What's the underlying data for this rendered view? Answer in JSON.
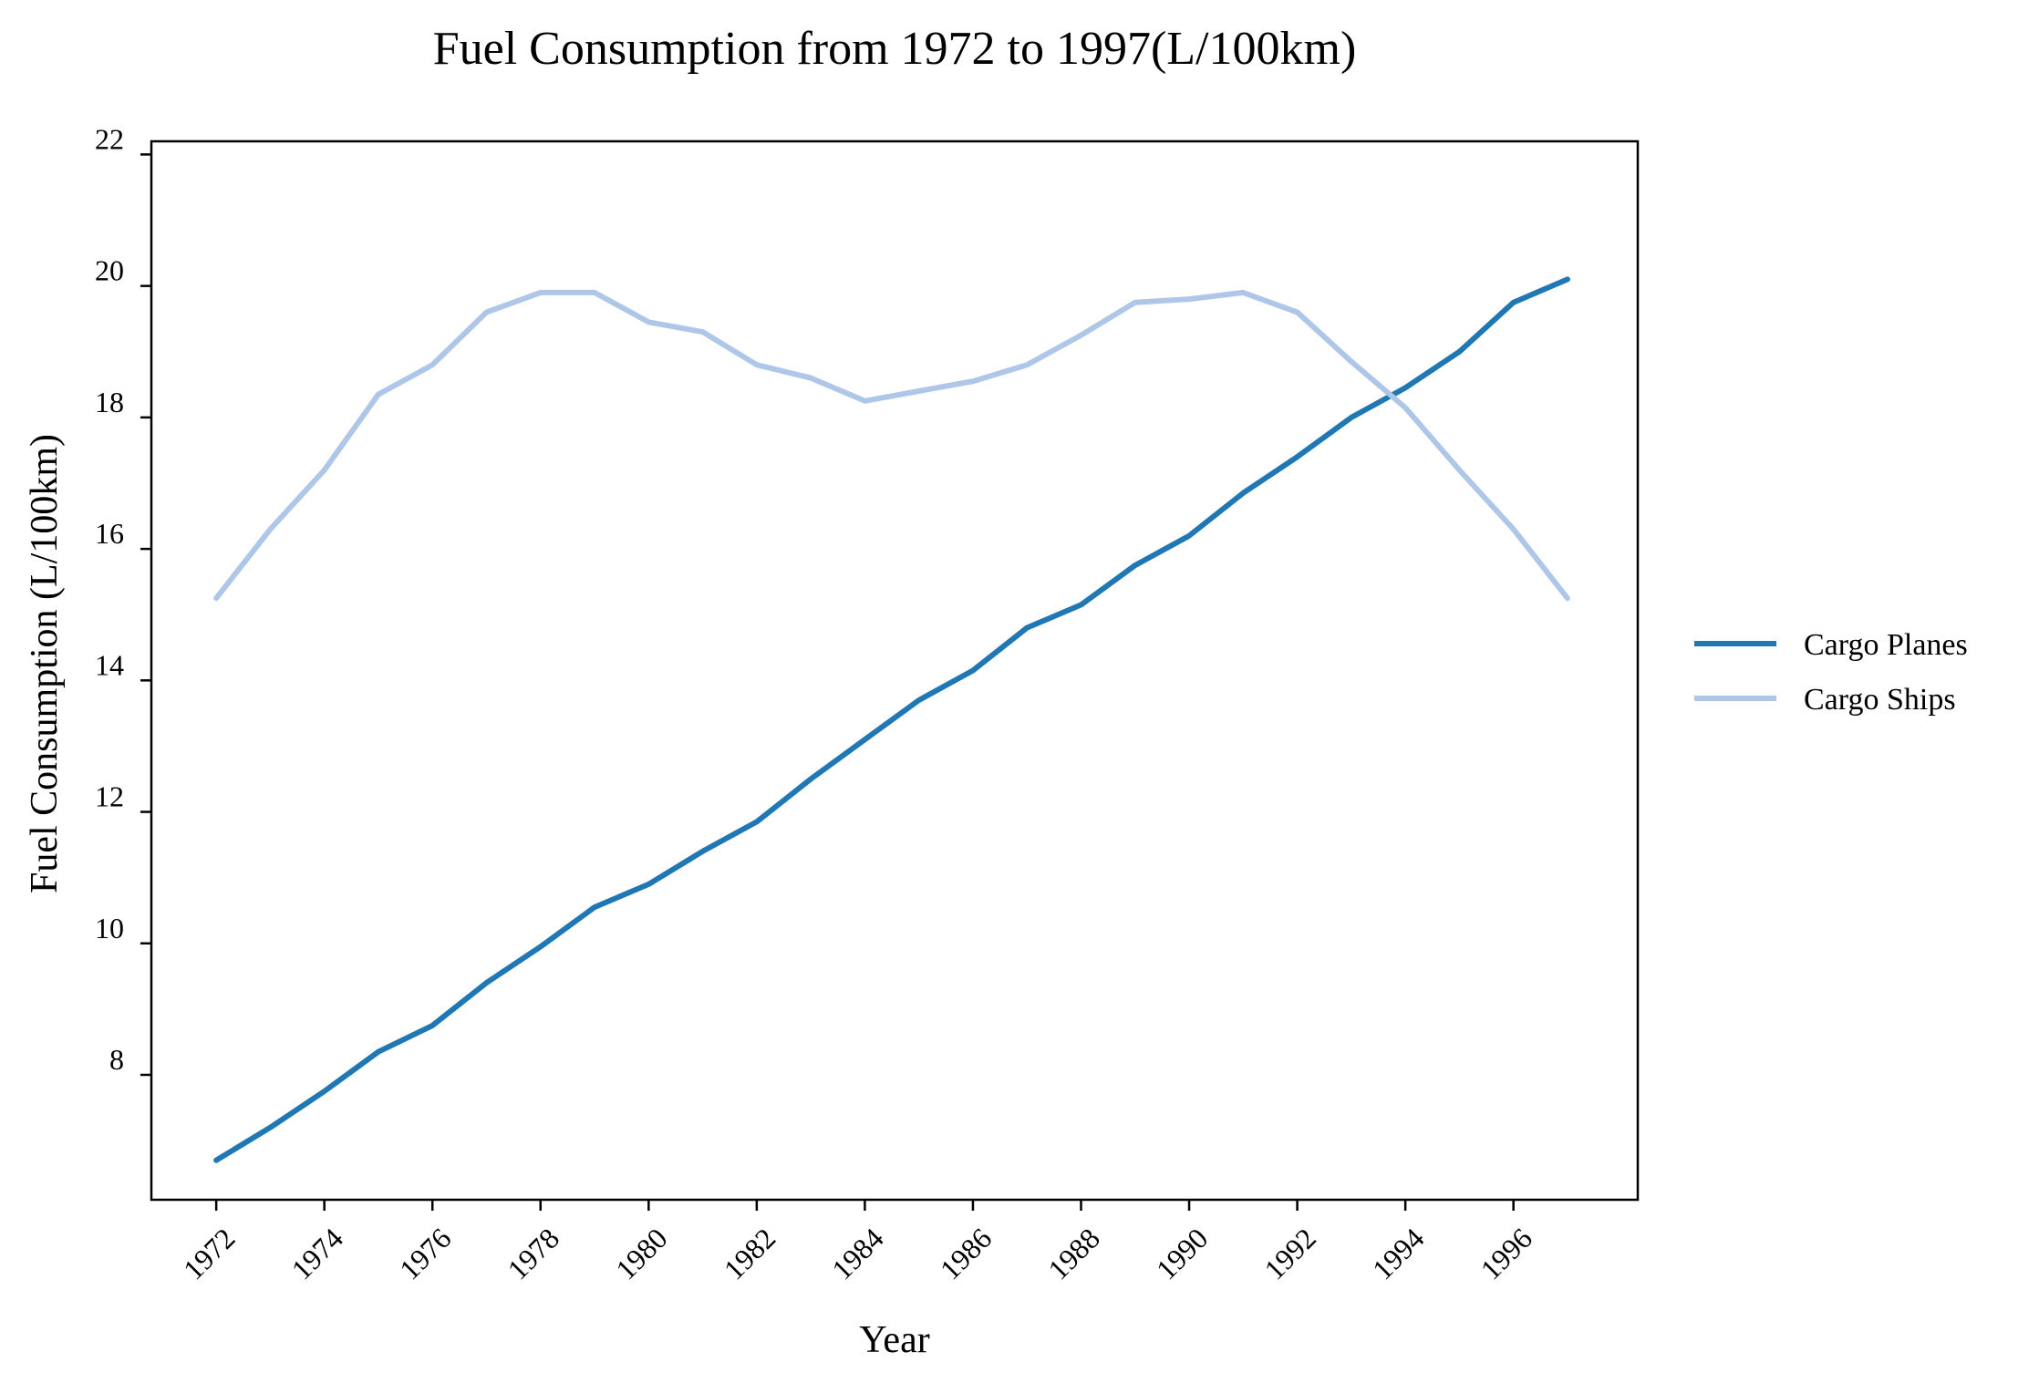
{
  "colors": {
    "background": "#ffffff",
    "axis": "#000000"
  },
  "chart_data": {
    "type": "line",
    "title": "Fuel Consumption from 1972 to 1997(L/100km)",
    "xlabel": "Year",
    "ylabel": "Fuel Consumption (L/100km)",
    "x": [
      1972,
      1973,
      1974,
      1975,
      1976,
      1977,
      1978,
      1979,
      1980,
      1981,
      1982,
      1983,
      1984,
      1985,
      1986,
      1987,
      1988,
      1989,
      1990,
      1991,
      1992,
      1993,
      1994,
      1995,
      1996,
      1997
    ],
    "xlim": [
      1970.8,
      1998.3
    ],
    "ylim": [
      6.1,
      22.2
    ],
    "xticks": [
      1972,
      1974,
      1976,
      1978,
      1980,
      1982,
      1984,
      1986,
      1988,
      1990,
      1992,
      1994,
      1996
    ],
    "xtick_labels": [
      "1972",
      "1974",
      "1976",
      "1978",
      "1980",
      "1982",
      "1984",
      "1986",
      "1988",
      "1990",
      "1992",
      "1994",
      "1996"
    ],
    "yticks": [
      8,
      10,
      12,
      14,
      16,
      18,
      20,
      22
    ],
    "ytick_labels": [
      "8",
      "10",
      "12",
      "14",
      "16",
      "18",
      "20",
      "22"
    ],
    "grid": false,
    "legend_position": "right",
    "series": [
      {
        "name": "Cargo Planes",
        "color": "#1f77b4",
        "values": [
          6.7,
          7.2,
          7.75,
          8.35,
          8.75,
          9.4,
          9.95,
          10.55,
          10.9,
          11.4,
          11.85,
          12.5,
          13.1,
          13.7,
          14.15,
          14.8,
          15.15,
          15.75,
          16.2,
          16.85,
          17.4,
          18.0,
          18.45,
          19.0,
          19.75,
          20.1
        ],
        "legend_label": "Cargo Planes"
      },
      {
        "name": "Cargo Ships",
        "color": "#aec7e8",
        "values": [
          15.25,
          16.3,
          17.2,
          18.35,
          18.8,
          19.6,
          19.9,
          19.9,
          19.45,
          19.3,
          18.8,
          18.6,
          18.25,
          18.4,
          18.55,
          18.8,
          19.25,
          19.75,
          19.8,
          19.9,
          19.6,
          18.85,
          18.15,
          17.2,
          16.3,
          15.25
        ],
        "legend_label": "Cargo Ships"
      }
    ]
  }
}
